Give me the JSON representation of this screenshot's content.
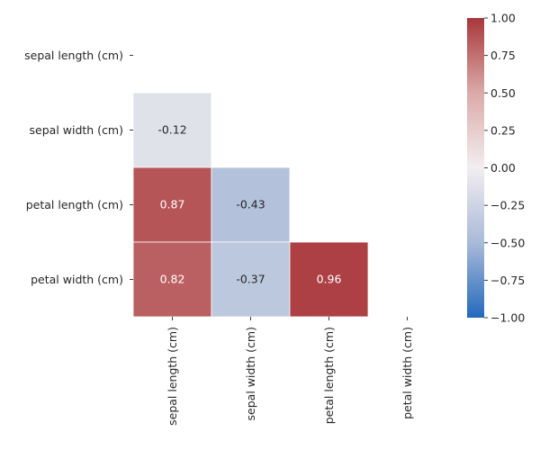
{
  "chart_data": {
    "type": "heatmap",
    "subtype": "lower-triangle correlation matrix",
    "rows": [
      "sepal length (cm)",
      "sepal width (cm)",
      "petal length (cm)",
      "petal width (cm)"
    ],
    "columns": [
      "sepal length (cm)",
      "sepal width (cm)",
      "petal length (cm)",
      "petal width (cm)"
    ],
    "cells": [
      {
        "row": 1,
        "col": 0,
        "value": -0.12,
        "label": "-0.12"
      },
      {
        "row": 2,
        "col": 0,
        "value": 0.87,
        "label": "0.87"
      },
      {
        "row": 2,
        "col": 1,
        "value": -0.43,
        "label": "-0.43"
      },
      {
        "row": 3,
        "col": 0,
        "value": 0.82,
        "label": "0.82"
      },
      {
        "row": 3,
        "col": 1,
        "value": -0.37,
        "label": "-0.37"
      },
      {
        "row": 3,
        "col": 2,
        "value": 0.96,
        "label": "0.96"
      }
    ],
    "colorbar": {
      "range": [
        -1,
        1
      ],
      "ticks": [
        1.0,
        0.75,
        0.5,
        0.25,
        0.0,
        -0.25,
        -0.5,
        -0.75,
        -1.0
      ],
      "tick_labels": [
        "1.00",
        "0.75",
        "0.50",
        "0.25",
        "0.00",
        "−0.25",
        "−0.50",
        "−0.75",
        "−1.00"
      ],
      "colormap": "vlag",
      "colormap_stops": [
        "#2369bd",
        "#a9bad8",
        "#f2eef0",
        "#dbaaa7",
        "#a9373b"
      ]
    },
    "title": "",
    "xlabel": "",
    "ylabel": "",
    "grid": false,
    "cell_border_color": "#ffffff"
  }
}
